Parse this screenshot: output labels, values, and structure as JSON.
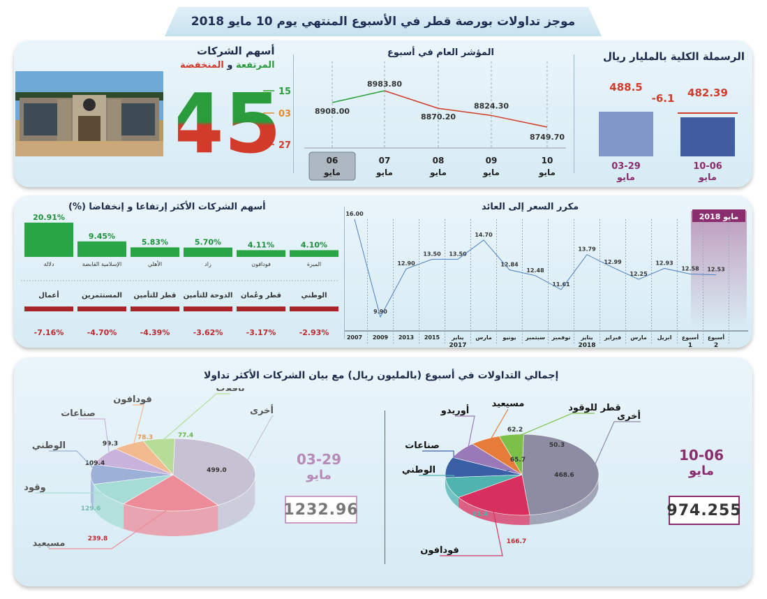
{
  "header": {
    "title": "موجز تداولات بورصة قطر في الأسبوع المنتهي يوم 10 مايو 2018"
  },
  "market_cap": {
    "title": "الرسملة الكلية بالمليار ريال",
    "change": "-6.1",
    "colors": {
      "prev": "#8196c9",
      "curr": "#3f5da0",
      "change": "#d23a2a"
    },
    "bars": [
      {
        "label": "03-29",
        "sub": "مايو",
        "value": 488.5,
        "value_label": "488.5"
      },
      {
        "label": "10-06",
        "sub": "مايو",
        "value": 482.39,
        "value_label": "482.39"
      }
    ]
  },
  "index": {
    "title": "المؤشر العام في أسبوع",
    "colors": {
      "up": "#2a9c3b",
      "down": "#d23a2a"
    },
    "days": [
      {
        "day": "06",
        "month": "مايو",
        "value": 8908.0,
        "label": "8908.00"
      },
      {
        "day": "07",
        "month": "مايو",
        "value": 8983.8,
        "label": "8983.80"
      },
      {
        "day": "08",
        "month": "مايو",
        "value": 8870.2,
        "label": "8870.20"
      },
      {
        "day": "09",
        "month": "مايو",
        "value": 8824.3,
        "label": "8824.30"
      },
      {
        "day": "10",
        "month": "مايو",
        "value": 8749.7,
        "label": "8749.70"
      }
    ]
  },
  "companies": {
    "title": "أسهم الشركات",
    "subtitle_up": "المرتفعة",
    "subtitle_and": "و",
    "subtitle_down": "المنخفضة",
    "total": "45",
    "up": "15",
    "unchanged": "03",
    "down": "27",
    "colors": {
      "up": "#2a9c3b",
      "unchanged": "#e58b2c",
      "down": "#d23a2a"
    }
  },
  "movers": {
    "title": "أسهم الشركات الأكثر إرتفاعا و إنخفاضا (%)",
    "colors": {
      "gainers": "#2aa545",
      "losers": "#a8262a",
      "gain_text": "#1e8f3a",
      "loss_text": "#c0272d"
    },
    "gainers": [
      {
        "name": "دلالة",
        "value": 20.91,
        "label": "20.91%"
      },
      {
        "name": "الإسلامية القابضة",
        "value": 9.45,
        "label": "9.45%"
      },
      {
        "name": "الأهلي",
        "value": 5.83,
        "label": "5.83%"
      },
      {
        "name": "زاد",
        "value": 5.7,
        "label": "5.70%"
      },
      {
        "name": "فودافون",
        "value": 4.11,
        "label": "4.11%"
      },
      {
        "name": "الميرة",
        "value": 4.1,
        "label": "4.10%"
      }
    ],
    "losers": [
      {
        "name": "أعمال",
        "value": -7.16,
        "label": "-7.16%"
      },
      {
        "name": "المستثمرين",
        "value": -4.7,
        "label": "-4.70%"
      },
      {
        "name": "قطر للتأمين",
        "value": -4.39,
        "label": "-4.39%"
      },
      {
        "name": "الدوحة للتأمين",
        "value": -3.62,
        "label": "-3.62%"
      },
      {
        "name": "قطر وعُمان",
        "value": -3.17,
        "label": "-3.17%"
      },
      {
        "name": "الوطني",
        "value": -2.93,
        "label": "-2.93%"
      }
    ]
  },
  "pe": {
    "title": "مكرر السعر إلى العائد",
    "highlight": "مايو 2018",
    "line_color": "#4d7fc0",
    "points": [
      {
        "x": "2007",
        "sub": "",
        "value": 16.0,
        "label": "16.00"
      },
      {
        "x": "2009",
        "sub": "",
        "value": 9.9,
        "label": "9.90"
      },
      {
        "x": "2013",
        "sub": "",
        "value": 12.9,
        "label": "12.90"
      },
      {
        "x": "2015",
        "sub": "",
        "value": 13.5,
        "label": "13.50"
      },
      {
        "x": "يناير",
        "sub": "2017",
        "value": 13.5,
        "label": "13.50"
      },
      {
        "x": "مارس",
        "sub": "",
        "value": 14.7,
        "label": "14.70"
      },
      {
        "x": "يونيو",
        "sub": "",
        "value": 12.84,
        "label": "12.84"
      },
      {
        "x": "سبتمبر",
        "sub": "",
        "value": 12.48,
        "label": "12.48"
      },
      {
        "x": "نوفمبر",
        "sub": "",
        "value": 11.61,
        "label": "11.61"
      },
      {
        "x": "يناير",
        "sub": "2018",
        "value": 13.79,
        "label": "13.79"
      },
      {
        "x": "فبراير",
        "sub": "",
        "value": 12.99,
        "label": "12.99"
      },
      {
        "x": "مارس",
        "sub": "",
        "value": 12.25,
        "label": "12.25"
      },
      {
        "x": "ابريل",
        "sub": "",
        "value": 12.93,
        "label": "12.93"
      },
      {
        "x": "أسبوع",
        "sub": "1",
        "value": 12.58,
        "label": "12.58"
      },
      {
        "x": "أسبوع",
        "sub": "2",
        "value": 12.53,
        "label": "12.53"
      }
    ]
  },
  "trading": {
    "title": "إجمالي التداولات في أسبوع (بالمليون ريال) مع بيان الشركات الأكثر تداولا",
    "weeks": [
      {
        "label": "10-06",
        "sub": "مايو",
        "total": "974.255",
        "slices": [
          {
            "name": "أخرى",
            "value": 468.6,
            "label": "468.6",
            "color": "#8d8ca3"
          },
          {
            "name": "فودافون",
            "value": 166.7,
            "label": "166.7",
            "color": "#d8305e"
          },
          {
            "name": "الوطني",
            "value": 81.4,
            "label": "81.4",
            "color": "#4fb3b0"
          },
          {
            "name": "صناعات",
            "value": 79.5,
            "label": "79.5",
            "color": "#3b5fa6"
          },
          {
            "name": "أوريدو",
            "value": 65.7,
            "label": "65.7",
            "color": "#9a79b8"
          },
          {
            "name": "مسيعيد",
            "value": 62.2,
            "label": "62.2",
            "color": "#e57c3a"
          },
          {
            "name": "قطر للوقود",
            "value": 50.3,
            "label": "50.3",
            "color": "#7cc04a"
          }
        ]
      },
      {
        "label": "03-29",
        "sub": "مايو",
        "total": "1232.96",
        "slices": [
          {
            "name": "أخرى",
            "value": 499.0,
            "label": "499.0",
            "color": "#c7c2d3"
          },
          {
            "name": "مسيعيد",
            "value": 239.8,
            "label": "239.8",
            "color": "#ec8c99"
          },
          {
            "name": "وقود",
            "value": 129.6,
            "label": "129.6",
            "color": "#a6dcd6"
          },
          {
            "name": "الوطني",
            "value": 109.4,
            "label": "109.4",
            "color": "#9db0d8"
          },
          {
            "name": "صناعات",
            "value": 99.3,
            "label": "99.3",
            "color": "#c9b3dc"
          },
          {
            "name": "فودافون",
            "value": 78.3,
            "label": "78.3",
            "color": "#f3b98f"
          },
          {
            "name": "ناقلات",
            "value": 77.4,
            "label": "77.4",
            "color": "#b6dc98"
          }
        ]
      }
    ]
  },
  "chart_data": [
    {
      "type": "bar",
      "title": "الرسملة الكلية بالمليار ريال",
      "categories": [
        "03-29 مايو",
        "10-06 مايو"
      ],
      "values": [
        488.5,
        482.39
      ],
      "annotations": [
        "-6.1"
      ]
    },
    {
      "type": "line",
      "title": "المؤشر العام في أسبوع",
      "x": [
        "06 مايو",
        "07 مايو",
        "08 مايو",
        "09 مايو",
        "10 مايو"
      ],
      "values": [
        8908.0,
        8983.8,
        8870.2,
        8824.3,
        8749.7
      ]
    },
    {
      "type": "bar",
      "title": "أسهم الشركات الأكثر إرتفاعا و إنخفاضا (%)",
      "categories": [
        "دلالة",
        "الإسلامية القابضة",
        "الأهلي",
        "زاد",
        "فودافون",
        "الميرة",
        "أعمال",
        "المستثمرين",
        "قطر للتأمين",
        "الدوحة للتأمين",
        "قطر وعُمان",
        "الوطني"
      ],
      "values": [
        20.91,
        9.45,
        5.83,
        5.7,
        4.11,
        4.1,
        -7.16,
        -4.7,
        -4.39,
        -3.62,
        -3.17,
        -2.93
      ]
    },
    {
      "type": "line",
      "title": "مكرر السعر إلى العائد",
      "x": [
        "2007",
        "2009",
        "2013",
        "2015",
        "يناير 2017",
        "مارس",
        "يونيو",
        "سبتمبر",
        "نوفمبر",
        "يناير 2018",
        "فبراير",
        "مارس",
        "ابريل",
        "أسبوع 1",
        "أسبوع 2"
      ],
      "values": [
        16.0,
        9.9,
        12.9,
        13.5,
        13.5,
        14.7,
        12.84,
        12.48,
        11.61,
        13.79,
        12.99,
        12.25,
        12.93,
        12.58,
        12.53
      ]
    },
    {
      "type": "pie",
      "title": "10-06 مايو",
      "categories": [
        "أخرى",
        "فودافون",
        "الوطني",
        "صناعات",
        "أوريدو",
        "مسيعيد",
        "قطر للوقود"
      ],
      "values": [
        468.6,
        166.7,
        81.4,
        79.5,
        65.7,
        62.2,
        50.3
      ]
    },
    {
      "type": "pie",
      "title": "03-29 مايو",
      "categories": [
        "أخرى",
        "مسيعيد",
        "وقود",
        "الوطني",
        "صناعات",
        "فودافون",
        "ناقلات"
      ],
      "values": [
        499.0,
        239.8,
        129.6,
        109.4,
        99.3,
        78.3,
        77.4
      ]
    }
  ]
}
